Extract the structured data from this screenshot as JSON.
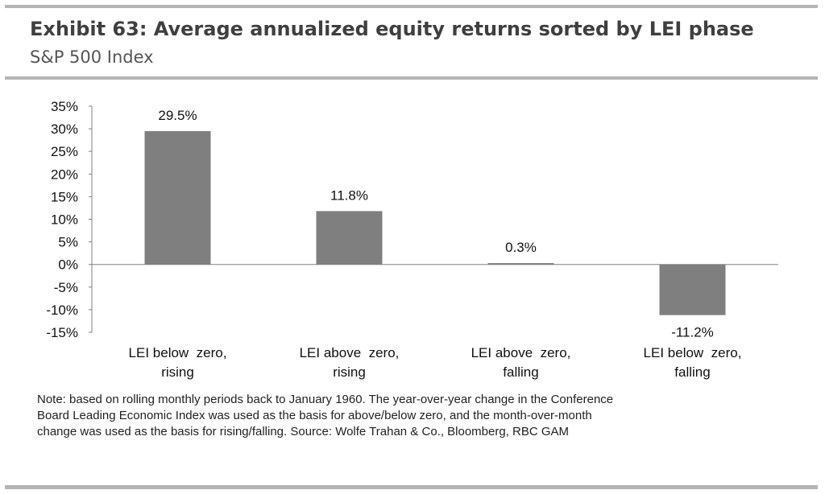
{
  "header": {
    "title": "Exhibit 63: Average annualized equity returns sorted by LEI phase",
    "subtitle": "S&P 500 Index"
  },
  "colors": {
    "bar": "#7f7f7f",
    "rule": "#b4b4b4",
    "axis": "#808080",
    "text": "#111111"
  },
  "chart_data": {
    "type": "bar",
    "categories": [
      [
        "LEI below  zero,",
        "rising"
      ],
      [
        "LEI above  zero,",
        "rising"
      ],
      [
        "LEI above  zero,",
        "falling"
      ],
      [
        "LEI below  zero,",
        "falling"
      ]
    ],
    "values": [
      29.5,
      11.8,
      0.3,
      -11.2
    ],
    "data_labels": [
      "29.5%",
      "11.8%",
      "0.3%",
      "-11.2%"
    ],
    "yticks": [
      35,
      30,
      25,
      20,
      15,
      10,
      5,
      0,
      -5,
      -10,
      -15
    ],
    "ytick_labels": [
      "35%",
      "30%",
      "25%",
      "20%",
      "15%",
      "10%",
      "5%",
      "0%",
      "-5%",
      "-10%",
      "-15%"
    ],
    "ylim": [
      -15,
      35
    ],
    "grid": false,
    "legend": "none"
  },
  "note": {
    "lines": [
      "Note: based on rolling monthly periods back to January 1960. The year-over-year change in the Conference",
      "Board Leading Economic Index was used as the basis for above/below zero, and the month-over-month",
      "change was used as the basis for rising/falling. Source: Wolfe Trahan & Co., Bloomberg, RBC GAM"
    ]
  }
}
